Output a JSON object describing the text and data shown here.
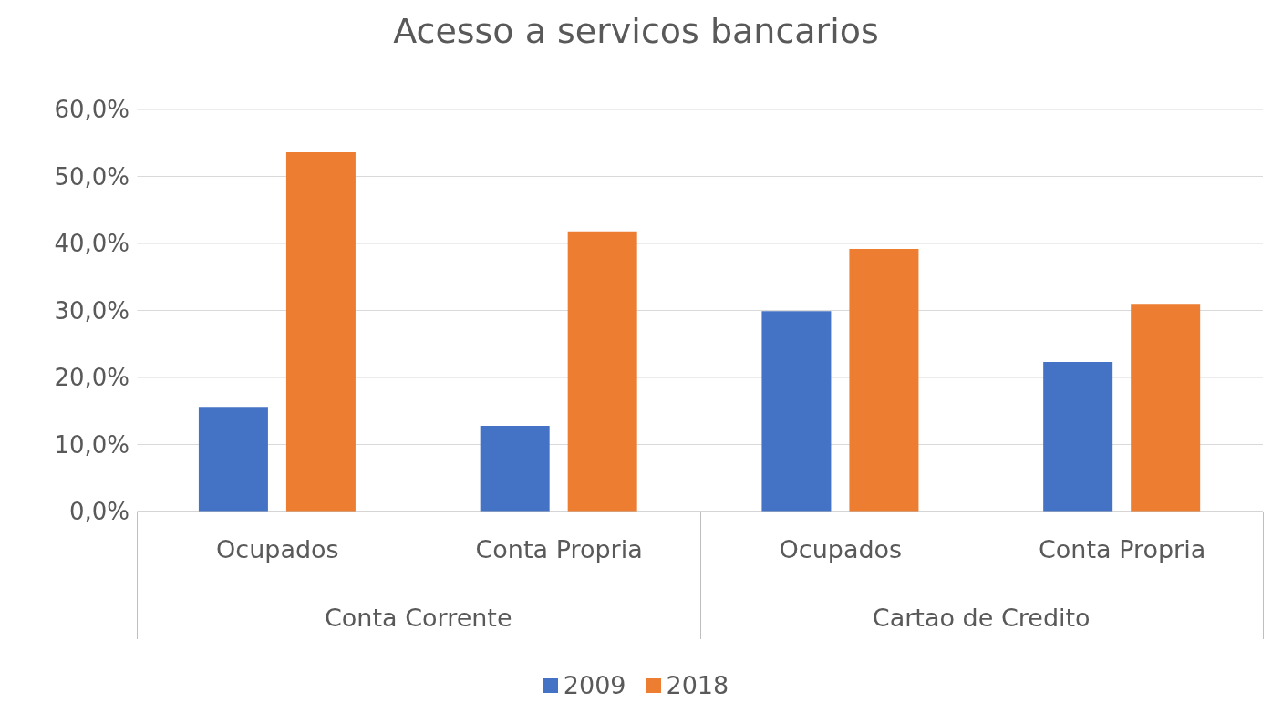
{
  "chart_data": {
    "type": "bar",
    "title": "Acesso a servicos bancarios",
    "categories": [
      "Ocupados",
      "Conta Propria",
      "Ocupados",
      "Conta Propria"
    ],
    "annotations": [
      "Conta Corrente",
      "Cartao de Credito"
    ],
    "series": [
      {
        "name": "2009",
        "color": "#4472c4",
        "values": [
          15.6,
          12.8,
          29.9,
          22.3
        ]
      },
      {
        "name": "2018",
        "color": "#ed7d31",
        "values": [
          53.6,
          41.8,
          39.2,
          31.0
        ]
      }
    ],
    "ylim": [
      0,
      60
    ],
    "yticks": [
      {
        "value": 0,
        "label": "0,0%"
      },
      {
        "value": 10,
        "label": "10,0%"
      },
      {
        "value": 20,
        "label": "20,0%"
      },
      {
        "value": 30,
        "label": "30,0%"
      },
      {
        "value": 40,
        "label": "40,0%"
      },
      {
        "value": 50,
        "label": "50,0%"
      },
      {
        "value": 60,
        "label": "60,0%"
      }
    ],
    "grid": "y",
    "legend": "bottom"
  }
}
